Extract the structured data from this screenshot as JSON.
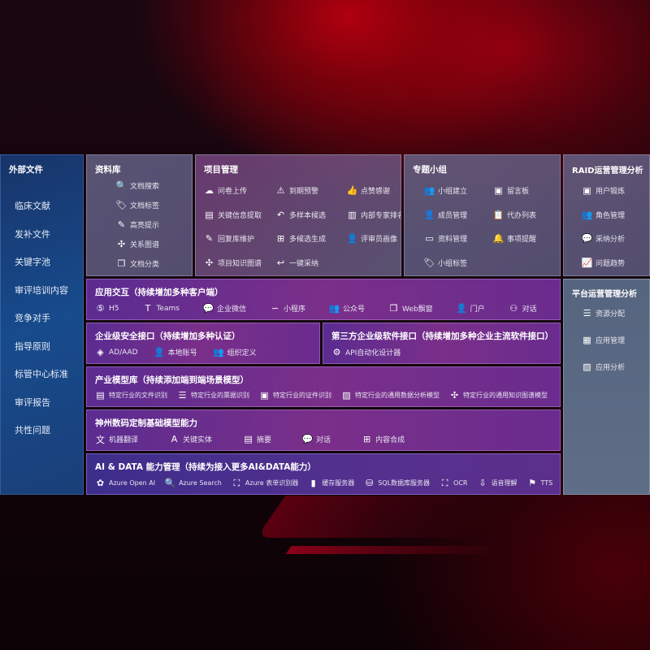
{
  "external": {
    "title": "外部文件",
    "items": [
      "临床文献",
      "发补文件",
      "关键字池",
      "审评培训内容",
      "竞争对手",
      "指导原则",
      "标管中心标准",
      "审评报告",
      "共性问题"
    ]
  },
  "library": {
    "title": "资料库",
    "items": [
      {
        "label": "文档搜索",
        "icon": "document-search-icon",
        "glyph": "🔍"
      },
      {
        "label": "文档标签",
        "icon": "tag-icon",
        "glyph": "🏷"
      },
      {
        "label": "高亮提示",
        "icon": "pen-icon",
        "glyph": "✎"
      },
      {
        "label": "关系图谱",
        "icon": "graph-icon",
        "glyph": "✣"
      },
      {
        "label": "文档分类",
        "icon": "documents-icon",
        "glyph": "❐"
      }
    ]
  },
  "project": {
    "title": "项目管理",
    "items": [
      {
        "label": "问卷上传",
        "icon": "cloud-upload-icon",
        "glyph": "☁"
      },
      {
        "label": "到期预警",
        "icon": "alarm-icon",
        "glyph": "⚠"
      },
      {
        "label": "点赞感谢",
        "icon": "thumbs-up-icon",
        "glyph": "👍"
      },
      {
        "label": "关键信息提取",
        "icon": "window-icon",
        "glyph": "▤"
      },
      {
        "label": "多样本候选",
        "icon": "reply-all-icon",
        "glyph": "↶"
      },
      {
        "label": "内部专家排名",
        "icon": "ranking-icon",
        "glyph": "▥"
      },
      {
        "label": "回复库维护",
        "icon": "edit-icon",
        "glyph": "✎"
      },
      {
        "label": "多候选生成",
        "icon": "puzzle-icon",
        "glyph": "⊞"
      },
      {
        "label": "评审员画像",
        "icon": "user-icon",
        "glyph": "👤"
      },
      {
        "label": "项目知识图谱",
        "icon": "network-icon",
        "glyph": "✣"
      },
      {
        "label": "一键采纳",
        "icon": "reply-icon",
        "glyph": "↩"
      }
    ]
  },
  "group": {
    "title": "专题小组",
    "items": [
      {
        "label": "小组建立",
        "icon": "users-icon",
        "glyph": "👥"
      },
      {
        "label": "留言板",
        "icon": "bbs-icon",
        "glyph": "▣"
      },
      {
        "label": "成员管理",
        "icon": "user-add-icon",
        "glyph": "👤"
      },
      {
        "label": "代办列表",
        "icon": "clipboard-icon",
        "glyph": "📋"
      },
      {
        "label": "资料管理",
        "icon": "folder-icon",
        "glyph": "▭"
      },
      {
        "label": "事项提醒",
        "icon": "bell-icon",
        "glyph": "🔔"
      },
      {
        "label": "小组标签",
        "icon": "tag-icon",
        "glyph": "🏷"
      }
    ]
  },
  "raid": {
    "title": "RAID运营管理分析",
    "items": [
      {
        "label": "用户锻炼",
        "icon": "id-card-icon",
        "glyph": "▣"
      },
      {
        "label": "角色管理",
        "icon": "users-icon",
        "glyph": "👥"
      },
      {
        "label": "采纳分析",
        "icon": "qa-icon",
        "glyph": "💬"
      },
      {
        "label": "问题趋势",
        "icon": "trend-icon",
        "glyph": "📈"
      }
    ]
  },
  "platform": {
    "title": "平台运营管理分析",
    "items": [
      {
        "label": "资源分配",
        "icon": "list-check-icon",
        "glyph": "☰"
      },
      {
        "label": "应用管理",
        "icon": "apps-icon",
        "glyph": "▦"
      },
      {
        "label": "应用分析",
        "icon": "analytics-icon",
        "glyph": "▨"
      }
    ]
  },
  "app": {
    "title": "应用交互（持续增加多种客户端）",
    "items": [
      {
        "label": "H5",
        "icon": "html5-icon",
        "glyph": "⑤"
      },
      {
        "label": "Teams",
        "icon": "teams-icon",
        "glyph": "T"
      },
      {
        "label": "企业微信",
        "icon": "wecom-icon",
        "glyph": "💬"
      },
      {
        "label": "小程序",
        "icon": "mini-program-icon",
        "glyph": "∽"
      },
      {
        "label": "公众号",
        "icon": "official-account-icon",
        "glyph": "👥"
      },
      {
        "label": "Web飘窗",
        "icon": "window-icon",
        "glyph": "❐"
      },
      {
        "label": "门户",
        "icon": "portal-icon",
        "glyph": "👤"
      },
      {
        "label": "对话",
        "icon": "chat-users-icon",
        "glyph": "⚇"
      }
    ]
  },
  "security": {
    "title": "企业级安全接口（持续增加多种认证）",
    "items": [
      {
        "label": "AD/AAD",
        "icon": "ad-icon",
        "glyph": "◈"
      },
      {
        "label": "本地账号",
        "icon": "local-account-icon",
        "glyph": "👤"
      },
      {
        "label": "组织定义",
        "icon": "organization-icon",
        "glyph": "👥"
      }
    ]
  },
  "thirdparty": {
    "title": "第三方企业级软件接口（持续增加多种企业主流软件接口）",
    "items": [
      {
        "label": "API自动化设计器",
        "icon": "gear-icon",
        "glyph": "⚙"
      }
    ]
  },
  "industry": {
    "title": "产业模型库（持续添加端到端场景模型）",
    "items": [
      {
        "label": "特定行业的文件识别",
        "icon": "file-icon",
        "glyph": "▤"
      },
      {
        "label": "特定行业的票据识别",
        "icon": "receipt-icon",
        "glyph": "☰"
      },
      {
        "label": "特定行业的证件识别",
        "icon": "id-card-icon",
        "glyph": "▣"
      },
      {
        "label": "特定行业的通用数据分析模型",
        "icon": "image-analysis-icon",
        "glyph": "▨"
      },
      {
        "label": "特定行业的通用知识图谱模型",
        "icon": "network-icon",
        "glyph": "✣"
      }
    ]
  },
  "base": {
    "title": "神州数码定制基础模型能力",
    "items": [
      {
        "label": "机器翻译",
        "icon": "translate-icon",
        "glyph": "文"
      },
      {
        "label": "关键实体",
        "icon": "entity-icon",
        "glyph": "A"
      },
      {
        "label": "摘要",
        "icon": "summary-icon",
        "glyph": "▤"
      },
      {
        "label": "对话",
        "icon": "chat-icon",
        "glyph": "💬"
      },
      {
        "label": "内容合成",
        "icon": "puzzle-icon",
        "glyph": "⊞"
      }
    ]
  },
  "ai": {
    "title": "AI & DATA 能力管理（持续为接入更多AI&DATA能力）",
    "items": [
      {
        "label": "Azure Open AI",
        "icon": "openai-icon",
        "glyph": "✿"
      },
      {
        "label": "Azure Search",
        "icon": "search-icon",
        "glyph": "🔍"
      },
      {
        "label": "Azure 表单识别器",
        "icon": "form-recognizer-icon",
        "glyph": "⛶"
      },
      {
        "label": "缓存服务器",
        "icon": "cache-server-icon",
        "glyph": "▮"
      },
      {
        "label": "SQL数据库服务器",
        "icon": "database-icon",
        "glyph": "⛁"
      },
      {
        "label": "OCR",
        "icon": "ocr-icon",
        "glyph": "⛶"
      },
      {
        "label": "语音理解",
        "icon": "speech-icon",
        "glyph": "⇩"
      },
      {
        "label": "TTS",
        "icon": "tts-icon",
        "glyph": "⚑"
      }
    ]
  }
}
